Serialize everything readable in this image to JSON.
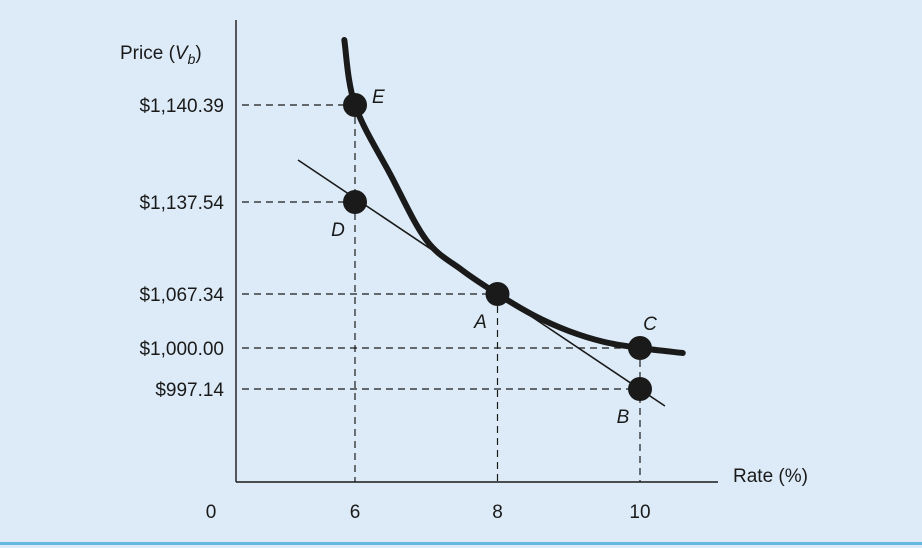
{
  "chart_data": {
    "type": "line",
    "xlabel": "Rate (%)",
    "ylabel_main": "Price (",
    "ylabel_var": "V",
    "ylabel_sub": "b",
    "ylabel_close": ")",
    "origin_label": "0",
    "x_ticks": [
      {
        "value": 6,
        "label": "6"
      },
      {
        "value": 8,
        "label": "8"
      },
      {
        "value": 10,
        "label": "10"
      }
    ],
    "y_ticks": [
      {
        "value": 1140.39,
        "label": "$1,140.39"
      },
      {
        "value": 1137.54,
        "label": "$1,137.54"
      },
      {
        "value": 1067.34,
        "label": "$1,067.34"
      },
      {
        "value": 1000.0,
        "label": "$1,000.00"
      },
      {
        "value": 997.14,
        "label": "$997.14"
      }
    ],
    "points": [
      {
        "name": "E",
        "x": 6,
        "y": 1140.39,
        "label_pos": "right"
      },
      {
        "name": "D",
        "x": 6,
        "y": 1137.54,
        "label_pos": "below-left"
      },
      {
        "name": "A",
        "x": 8,
        "y": 1067.34,
        "label_pos": "below-left"
      },
      {
        "name": "C",
        "x": 10,
        "y": 1000.0,
        "label_pos": "above"
      },
      {
        "name": "B",
        "x": 10,
        "y": 997.14,
        "label_pos": "below-left"
      }
    ],
    "series": [
      {
        "kind": "price-curve",
        "x": [
          5.85,
          6,
          6.5,
          7,
          7.5,
          8,
          8.5,
          9,
          9.5,
          10,
          10.6
        ],
        "y": [
          1160,
          1140.39,
          1110,
          1088,
          1076,
          1067.34,
          1049,
          1030,
          1015,
          1000.0,
          997.5
        ]
      },
      {
        "kind": "tangent-line",
        "x": [
          5.2,
          10.35
        ],
        "y": [
          1163,
          984
        ]
      }
    ],
    "guides": "dashed",
    "colors": {
      "background": "#dcebf7",
      "ink": "#1a1a1a",
      "rule": "#66b8e0"
    }
  }
}
